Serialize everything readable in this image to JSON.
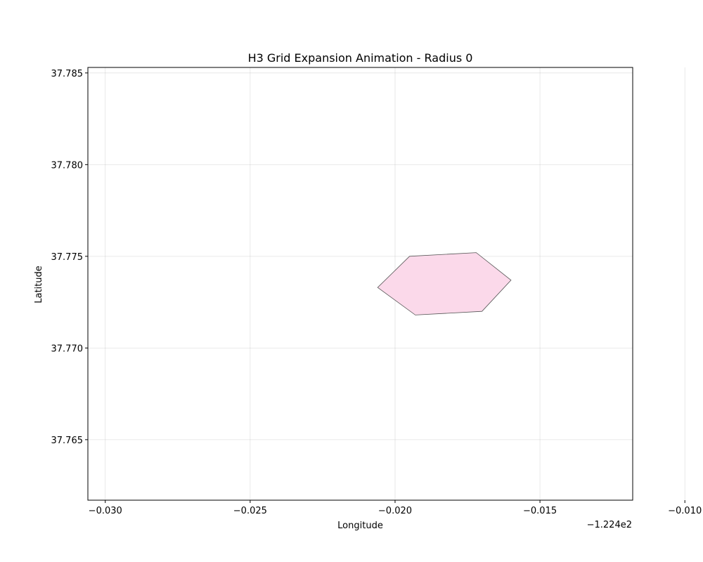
{
  "chart_data": {
    "type": "polygon",
    "title": "H3 Grid Expansion Animation - Radius 0",
    "xlabel": "Longitude",
    "ylabel": "Latitude",
    "x_offset_label": "−1.224e2",
    "xlim": [
      -0.0306,
      -0.0118
    ],
    "ylim": [
      37.7617,
      37.7853
    ],
    "x_ticks": [
      -0.03,
      -0.025,
      -0.02,
      -0.015,
      -0.01
    ],
    "x_tick_labels": [
      "−0.030",
      "−0.025",
      "−0.020",
      "−0.015",
      "−0.010"
    ],
    "y_ticks": [
      37.765,
      37.77,
      37.775,
      37.78,
      37.785
    ],
    "y_tick_labels": [
      "37.765",
      "37.770",
      "37.775",
      "37.780",
      "37.785"
    ],
    "grid": true,
    "polygons": [
      {
        "points": [
          [
            -0.0195,
            37.775
          ],
          [
            -0.0172,
            37.7752
          ],
          [
            -0.016,
            37.7737
          ],
          [
            -0.017,
            37.772
          ],
          [
            -0.0193,
            37.7718
          ],
          [
            -0.0206,
            37.7733
          ]
        ],
        "fill": "#fbd9ea",
        "stroke": "#555555"
      }
    ]
  }
}
